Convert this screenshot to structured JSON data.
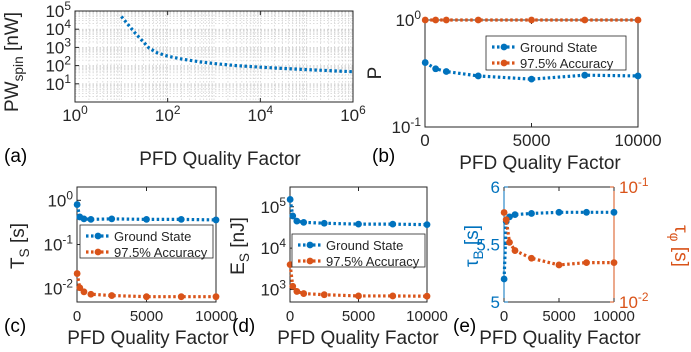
{
  "colors": {
    "blue": "#0072BD",
    "orange": "#D95319",
    "axis": "#262626",
    "grid": "#c8c8c8"
  },
  "chart_data": [
    {
      "panel": "(a)",
      "type": "line",
      "xscale": "log",
      "yscale": "log",
      "xlim": [
        1,
        1000000
      ],
      "ylim": [
        1,
        100000
      ],
      "grid": true,
      "xlabel": "PFD Quality Factor",
      "ylabel": "PW_spin [nW]",
      "xticklabels": [
        "10^0",
        "10^2",
        "10^4",
        "10^6"
      ],
      "yticklabels": [
        "10^1",
        "10^2",
        "10^3",
        "10^4",
        "10^5"
      ],
      "series": [
        {
          "color": "blue",
          "dash": "dotted",
          "x": [
            10,
            20,
            40,
            60,
            100,
            200,
            500,
            1000,
            3000,
            10000,
            30000,
            100000,
            300000,
            1000000
          ],
          "y": [
            50000,
            6000,
            900,
            500,
            330,
            230,
            160,
            130,
            100,
            82,
            70,
            60,
            53,
            46
          ]
        }
      ]
    },
    {
      "panel": "(b)",
      "type": "line",
      "yscale": "log",
      "xlim": [
        0,
        10000
      ],
      "ylim": [
        0.1,
        1
      ],
      "grid": false,
      "xlabel": "PFD Quality Factor",
      "ylabel": "P",
      "xticklabels": [
        "0",
        "5000",
        "10000"
      ],
      "yticklabels": [
        "10^-1",
        "10^0"
      ],
      "legend_position": "top-right",
      "series": [
        {
          "name": "Ground State",
          "color": "blue",
          "dash": "dotted",
          "x": [
            10,
            500,
            1000,
            2500,
            5000,
            7500,
            10000
          ],
          "y": [
            0.4,
            0.35,
            0.33,
            0.3,
            0.28,
            0.305,
            0.3
          ]
        },
        {
          "name": "97.5% Accuracy",
          "color": "orange",
          "dash": "dotted",
          "x": [
            10,
            500,
            1000,
            2500,
            5000,
            7500,
            10000
          ],
          "y": [
            1,
            1,
            1,
            1,
            1,
            1,
            1
          ]
        }
      ]
    },
    {
      "panel": "(c)",
      "type": "line",
      "yscale": "log",
      "xlim": [
        0,
        10000
      ],
      "ylim": [
        0.005,
        2
      ],
      "grid": false,
      "xlabel": "PFD Quality Factor",
      "ylabel": "T_S [s]",
      "xticklabels": [
        "0",
        "5000",
        "10000"
      ],
      "yticklabels": [
        "10^-2",
        "10^-1",
        "10^0"
      ],
      "legend_position": "center-right",
      "series": [
        {
          "name": "Ground State",
          "color": "blue",
          "dash": "dotted",
          "x": [
            10,
            200,
            500,
            1000,
            2500,
            5000,
            7500,
            10000
          ],
          "y": [
            0.8,
            0.42,
            0.38,
            0.37,
            0.38,
            0.37,
            0.37,
            0.36
          ]
        },
        {
          "name": "97.5% Accuracy",
          "color": "orange",
          "dash": "dotted",
          "x": [
            10,
            200,
            500,
            1000,
            2500,
            5000,
            7500,
            10000
          ],
          "y": [
            0.022,
            0.0105,
            0.0085,
            0.0075,
            0.007,
            0.0066,
            0.0066,
            0.0066
          ]
        }
      ]
    },
    {
      "panel": "(d)",
      "type": "line",
      "yscale": "log",
      "xlim": [
        0,
        10000
      ],
      "ylim": [
        500,
        300000
      ],
      "grid": false,
      "xlabel": "PFD Quality Factor",
      "ylabel": "E_S [nJ]",
      "xticklabels": [
        "0",
        "5000",
        "10000"
      ],
      "yticklabels": [
        "10^3",
        "10^4",
        "10^5"
      ],
      "legend_position": "center-right",
      "series": [
        {
          "name": "Ground State",
          "color": "blue",
          "dash": "dotted",
          "x": [
            10,
            200,
            500,
            1000,
            2500,
            5000,
            7500,
            10000
          ],
          "y": [
            150000,
            60000,
            45000,
            42000,
            40000,
            38000,
            38000,
            37000
          ]
        },
        {
          "name": "97.5% Accuracy",
          "color": "orange",
          "dash": "dotted",
          "x": [
            10,
            200,
            500,
            1000,
            2500,
            5000,
            7500,
            10000
          ],
          "y": [
            4000,
            1200,
            900,
            800,
            750,
            700,
            700,
            690
          ]
        }
      ]
    },
    {
      "panel": "(e)",
      "type": "line",
      "xlim": [
        0,
        10000
      ],
      "grid": false,
      "xlabel": "PFD Quality Factor",
      "ylabel_left": "τ_B [s]",
      "ylim_left": [
        5,
        6
      ],
      "ylabel_right": "τ_φ [s]",
      "ylim_right": [
        0.01,
        0.1
      ],
      "right_yscale": "log",
      "xticklabels": [
        "0",
        "5000",
        "10000"
      ],
      "yticklabels_left": [
        "5",
        "5.5",
        "6"
      ],
      "yticklabels_right": [
        "10^-2",
        "10^-1"
      ],
      "series": [
        {
          "axis": "left",
          "color": "blue",
          "dash": "dotted",
          "x": [
            10,
            200,
            500,
            1000,
            2500,
            5000,
            7500,
            10000
          ],
          "y": [
            5.2,
            5.7,
            5.74,
            5.76,
            5.77,
            5.78,
            5.78,
            5.78
          ]
        },
        {
          "axis": "right",
          "color": "orange",
          "dash": "dotted",
          "x": [
            10,
            200,
            500,
            1000,
            2500,
            5000,
            7500,
            10000
          ],
          "y": [
            0.06,
            0.052,
            0.033,
            0.028,
            0.024,
            0.021,
            0.022,
            0.022
          ]
        }
      ]
    }
  ]
}
